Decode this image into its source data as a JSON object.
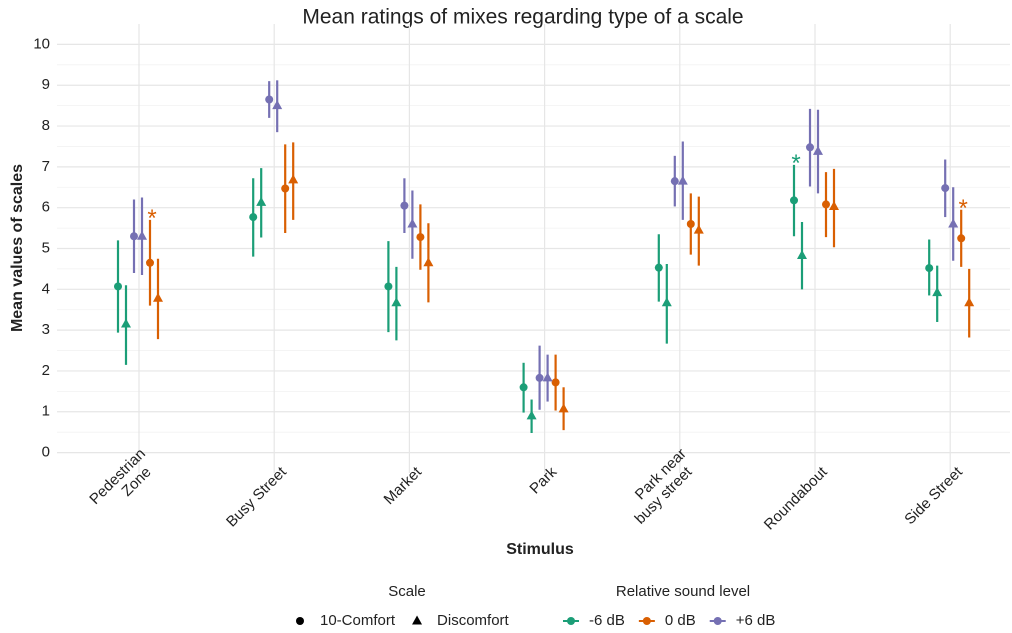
{
  "chart_data": {
    "type": "pointrange",
    "title": "Mean ratings of mixes regarding type of a scale",
    "x_label": "Stimulus",
    "y_label": "Mean values of scales",
    "categories": [
      "Pedestrian\nZone",
      "Busy Street",
      "Market",
      "Park",
      "Park near\nbusy street",
      "Roundabout",
      "Side Street"
    ],
    "ylim": [
      -0.5,
      10.5
    ],
    "yticks": [
      0,
      1,
      2,
      3,
      4,
      5,
      6,
      7,
      8,
      9,
      10
    ],
    "grid": true,
    "shape_legend_title": "Scale",
    "color_legend_title": "Relative sound level",
    "shapes": [
      {
        "name": "10-Comfort",
        "shape": "circle"
      },
      {
        "name": "Discomfort",
        "shape": "triangle"
      }
    ],
    "series": [
      {
        "name": "-6 dB",
        "color": "#1b9e77",
        "groups": [
          {
            "values": [
              4.07,
              5.77,
              4.07,
              1.6,
              4.53,
              6.18,
              4.52
            ],
            "lower": [
              2.94,
              4.8,
              2.95,
              0.98,
              3.7,
              5.3,
              3.85
            ],
            "upper": [
              5.2,
              6.72,
              5.18,
              2.2,
              5.35,
              7.05,
              5.22
            ]
          },
          {
            "values": [
              3.15,
              6.13,
              3.67,
              0.9,
              3.67,
              4.83,
              3.92
            ],
            "lower": [
              2.15,
              5.27,
              2.75,
              0.48,
              2.67,
              4.0,
              3.2
            ],
            "upper": [
              4.1,
              6.97,
              4.55,
              1.3,
              4.62,
              5.65,
              4.58
            ]
          }
        ]
      },
      {
        "name": "0 dB",
        "color": "#d95f02",
        "groups": [
          {
            "values": [
              4.65,
              6.47,
              5.28,
              1.72,
              5.6,
              6.08,
              5.25
            ],
            "lower": [
              3.6,
              5.38,
              4.48,
              1.03,
              4.85,
              5.28,
              4.55
            ],
            "upper": [
              5.7,
              7.55,
              6.08,
              2.4,
              6.35,
              6.87,
              5.95
            ]
          },
          {
            "values": [
              3.78,
              6.68,
              4.65,
              1.07,
              5.45,
              6.03,
              3.67
            ],
            "lower": [
              2.78,
              5.7,
              3.68,
              0.55,
              4.58,
              5.03,
              2.82
            ],
            "upper": [
              4.75,
              7.6,
              5.62,
              1.6,
              6.27,
              6.95,
              4.5
            ]
          }
        ]
      },
      {
        "name": "+6 dB",
        "color": "#7570b3",
        "groups": [
          {
            "values": [
              5.3,
              8.65,
              6.05,
              1.83,
              6.65,
              7.48,
              6.48
            ],
            "lower": [
              4.4,
              8.2,
              5.38,
              1.05,
              6.03,
              6.52,
              5.77
            ],
            "upper": [
              6.2,
              9.1,
              6.72,
              2.62,
              7.27,
              8.42,
              7.18
            ]
          },
          {
            "values": [
              5.3,
              8.5,
              5.6,
              1.83,
              6.65,
              7.38,
              5.6
            ],
            "lower": [
              4.35,
              7.85,
              4.75,
              1.25,
              5.7,
              6.35,
              4.7
            ],
            "upper": [
              6.25,
              9.12,
              6.42,
              2.4,
              7.62,
              8.4,
              6.5
            ]
          }
        ]
      }
    ],
    "annotations": [
      {
        "text": "*",
        "category": "Pedestrian\nZone",
        "series": "0 dB",
        "y": 5.85
      },
      {
        "text": "*",
        "category": "Roundabout",
        "series": "-6 dB",
        "y": 7.2
      },
      {
        "text": "*",
        "category": "Side Street",
        "series": "0 dB",
        "y": 6.1
      }
    ]
  }
}
